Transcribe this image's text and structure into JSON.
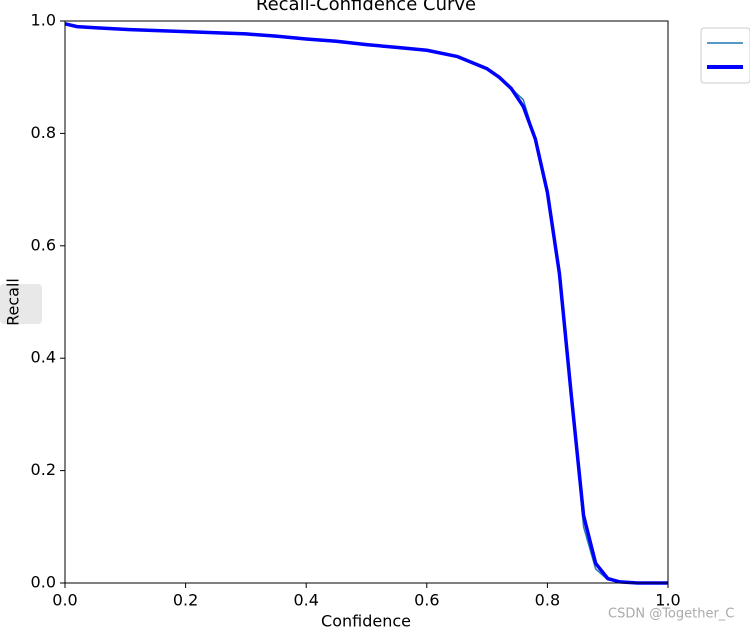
{
  "chart_data": {
    "type": "line",
    "title": "Recall-Confidence Curve",
    "x_label": "Confidence",
    "y_label": "Recall",
    "x": [
      0,
      0.02,
      0.05,
      0.1,
      0.2,
      0.3,
      0.35,
      0.4,
      0.45,
      0.5,
      0.55,
      0.6,
      0.65,
      0.7,
      0.72,
      0.74,
      0.76,
      0.78,
      0.8,
      0.82,
      0.84,
      0.86,
      0.88,
      0.9,
      0.92,
      0.95,
      1.0
    ],
    "series": [
      {
        "color": "#1f77b4",
        "values": [
          0.995,
          0.99,
          0.988,
          0.985,
          0.981,
          0.977,
          0.973,
          0.968,
          0.964,
          0.958,
          0.953,
          0.948,
          0.937,
          0.915,
          0.9,
          0.88,
          0.86,
          0.79,
          0.69,
          0.545,
          0.325,
          0.1,
          0.025,
          0.006,
          0.001,
          0.0,
          0.0
        ]
      },
      {
        "color": "#0000ff",
        "values": [
          0.995,
          0.99,
          0.988,
          0.985,
          0.981,
          0.977,
          0.973,
          0.968,
          0.964,
          0.958,
          0.953,
          0.948,
          0.937,
          0.915,
          0.9,
          0.88,
          0.848,
          0.79,
          0.695,
          0.55,
          0.33,
          0.12,
          0.035,
          0.008,
          0.002,
          0.0,
          0.0
        ]
      }
    ],
    "xlim": [
      0,
      1
    ],
    "ylim": [
      0,
      1
    ],
    "xticks": [
      {
        "value": 0,
        "label": "0.0"
      },
      0.2,
      0.4,
      0.6,
      0.8,
      {
        "value": 1,
        "label": "1.0"
      }
    ],
    "yticks": [
      {
        "value": 0,
        "label": "0.0"
      },
      0.2,
      0.4,
      0.6,
      0.8,
      {
        "value": 1,
        "label": "1.0"
      }
    ],
    "watermark": "CSDN @Together_C"
  }
}
